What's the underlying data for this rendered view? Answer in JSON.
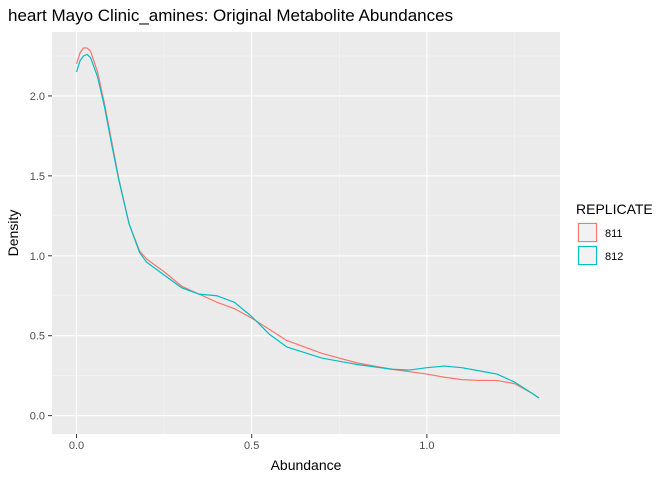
{
  "chart_data": {
    "type": "line",
    "title": "heart Mayo Clinic_amines: Original Metabolite Abundances",
    "xlabel": "Abundance",
    "ylabel": "Density",
    "xlim": [
      -0.07,
      1.38
    ],
    "ylim": [
      -0.115,
      2.4
    ],
    "x_ticks": [
      0.0,
      0.5,
      1.0
    ],
    "x_tick_labels": [
      "0.0",
      "0.5",
      "1.0"
    ],
    "y_ticks": [
      0.0,
      0.5,
      1.0,
      1.5,
      2.0
    ],
    "y_tick_labels": [
      "0.0",
      "0.5",
      "1.0",
      "1.5",
      "2.0"
    ],
    "grid": true,
    "legend": {
      "title": "REPLICATE",
      "position": "right"
    },
    "series": [
      {
        "name": "811",
        "color": "#F8766D",
        "x": [
          0.0,
          0.01,
          0.02,
          0.03,
          0.04,
          0.06,
          0.08,
          0.1,
          0.12,
          0.15,
          0.18,
          0.2,
          0.25,
          0.3,
          0.35,
          0.4,
          0.45,
          0.5,
          0.55,
          0.6,
          0.7,
          0.8,
          0.9,
          1.0,
          1.05,
          1.1,
          1.15,
          1.2,
          1.25,
          1.3,
          1.32
        ],
        "y": [
          2.2,
          2.27,
          2.3,
          2.3,
          2.28,
          2.15,
          1.95,
          1.72,
          1.49,
          1.2,
          1.03,
          0.98,
          0.9,
          0.81,
          0.76,
          0.71,
          0.67,
          0.61,
          0.54,
          0.47,
          0.39,
          0.33,
          0.29,
          0.26,
          0.24,
          0.225,
          0.22,
          0.22,
          0.2,
          0.14,
          0.11
        ]
      },
      {
        "name": "812",
        "color": "#00BFC4",
        "x": [
          0.0,
          0.01,
          0.02,
          0.03,
          0.04,
          0.06,
          0.08,
          0.1,
          0.12,
          0.15,
          0.18,
          0.2,
          0.25,
          0.3,
          0.35,
          0.4,
          0.45,
          0.5,
          0.55,
          0.6,
          0.7,
          0.8,
          0.9,
          0.95,
          1.0,
          1.05,
          1.1,
          1.15,
          1.2,
          1.25,
          1.3,
          1.32
        ],
        "y": [
          2.15,
          2.22,
          2.25,
          2.26,
          2.24,
          2.12,
          1.93,
          1.7,
          1.48,
          1.2,
          1.02,
          0.96,
          0.88,
          0.8,
          0.76,
          0.75,
          0.71,
          0.62,
          0.51,
          0.43,
          0.36,
          0.32,
          0.29,
          0.285,
          0.3,
          0.31,
          0.3,
          0.28,
          0.26,
          0.21,
          0.14,
          0.11
        ]
      }
    ]
  }
}
